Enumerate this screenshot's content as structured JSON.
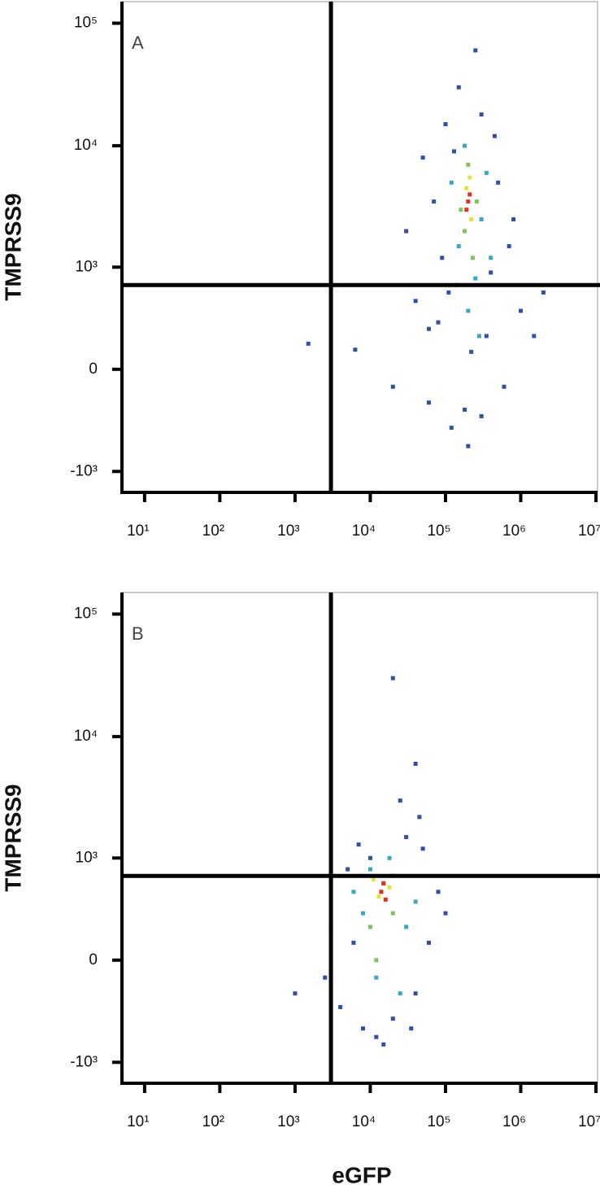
{
  "chart_data": [
    {
      "type": "scatter",
      "panel": "A",
      "ylabel": "TMPRSS9",
      "xscale": "log",
      "yscale": "biexponential",
      "xlim": [
        5,
        10500000
      ],
      "ylim": [
        -1500,
        150000
      ],
      "xticks": [
        {
          "value": 10,
          "label": "10¹"
        },
        {
          "value": 100,
          "label": "10²"
        },
        {
          "value": 1000,
          "label": "10³"
        },
        {
          "value": 10000,
          "label": "10⁴"
        },
        {
          "value": 100000,
          "label": "10⁵"
        },
        {
          "value": 1000000,
          "label": "10⁶"
        },
        {
          "value": 10000000,
          "label": "10⁷"
        }
      ],
      "yticks": [
        {
          "value": -1000,
          "label": "-10³"
        },
        0,
        {
          "value": 1000,
          "label": "10³"
        },
        {
          "value": 10000,
          "label": "10⁴"
        },
        {
          "value": 100000,
          "label": "10⁵"
        }
      ],
      "gates": {
        "x": 3000,
        "y": 700
      },
      "series": [
        {
          "color": "#2f4fa8",
          "x": [
            30000,
            50000,
            80000,
            60000,
            120000,
            100000,
            300000,
            500000,
            700000,
            1000000,
            2000000,
            40000,
            200000,
            300000,
            150000,
            250000,
            600000,
            1500000,
            800000,
            70000,
            110000,
            400000,
            20000,
            350000,
            90000,
            130000,
            450000,
            60000,
            220000,
            180000,
            6300,
            1500
          ],
          "y": [
            2000,
            8000,
            300,
            -200,
            -400,
            15000,
            18000,
            5000,
            1500,
            400,
            600,
            500,
            -600,
            -300,
            30000,
            60000,
            -100,
            200,
            2500,
            3500,
            600,
            900,
            -100,
            200,
            1200,
            9000,
            12000,
            250,
            100,
            -250,
            113,
            150
          ]
        },
        {
          "color": "#3aa6c8",
          "x": [
            150000,
            250000,
            200000,
            300000,
            120000,
            350000,
            180000,
            280000,
            140000,
            400000
          ],
          "y": [
            1500,
            800,
            400,
            2500,
            5000,
            6000,
            10000,
            200,
            700,
            1200
          ]
        },
        {
          "color": "#7cc55a",
          "x": [
            180000,
            230000,
            200000,
            260000,
            160000
          ],
          "y": [
            2000,
            1200,
            7000,
            3500,
            3000
          ]
        },
        {
          "color": "#e8e23a",
          "x": [
            190000,
            220000,
            210000
          ],
          "y": [
            4500,
            2500,
            5500
          ]
        },
        {
          "color": "#e0301e",
          "x": [
            200000,
            190000,
            210000
          ],
          "y": [
            3500,
            3000,
            4000
          ]
        }
      ]
    },
    {
      "type": "scatter",
      "panel": "B",
      "ylabel": "TMPRSS9",
      "xlabel": "eGFP",
      "xscale": "log",
      "yscale": "biexponential",
      "xlim": [
        5,
        10500000
      ],
      "ylim": [
        -1500,
        150000
      ],
      "xticks": [
        {
          "value": 10,
          "label": "10¹"
        },
        {
          "value": 100,
          "label": "10²"
        },
        {
          "value": 1000,
          "label": "10³"
        },
        {
          "value": 10000,
          "label": "10⁴"
        },
        {
          "value": 100000,
          "label": "10⁵"
        },
        {
          "value": 1000000,
          "label": "10⁶"
        },
        {
          "value": 10000000,
          "label": "10⁷"
        }
      ],
      "yticks": [
        {
          "value": -1000,
          "label": "-10³"
        },
        0,
        {
          "value": 1000,
          "label": "10³"
        },
        {
          "value": 10000,
          "label": "10⁴"
        },
        {
          "value": 100000,
          "label": "10⁵"
        }
      ],
      "gates": {
        "x": 3000,
        "y": 700
      },
      "series": [
        {
          "color": "#2f4fa8",
          "x": [
            3000,
            4000,
            5000,
            8000,
            12000,
            20000,
            40000,
            60000,
            80000,
            50000,
            30000,
            10000,
            25000,
            40000,
            20000,
            6000,
            100000,
            35000,
            15000,
            7000,
            45000,
            3000,
            2500,
            1000
          ],
          "y": [
            200,
            -300,
            800,
            -500,
            -600,
            -400,
            -200,
            100,
            500,
            1200,
            1500,
            1000,
            3000,
            6000,
            30000,
            100,
            300,
            -500,
            -700,
            1300,
            2200,
            600,
            -100,
            -200
          ]
        },
        {
          "color": "#3aa6c8",
          "x": [
            8000,
            12000,
            20000,
            30000,
            10000,
            25000,
            6000,
            18000,
            40000
          ],
          "y": [
            300,
            -100,
            700,
            200,
            800,
            -200,
            500,
            1000,
            400
          ]
        },
        {
          "color": "#7cc55a",
          "x": [
            10000,
            15000,
            20000,
            12000,
            8000
          ],
          "y": [
            200,
            600,
            300,
            0,
            700
          ]
        },
        {
          "color": "#e8e23a",
          "x": [
            13000,
            18000,
            11000
          ],
          "y": [
            450,
            550,
            650
          ]
        },
        {
          "color": "#e0301e",
          "x": [
            14000,
            16000,
            15000
          ],
          "y": [
            500,
            420,
            600
          ]
        }
      ]
    }
  ]
}
